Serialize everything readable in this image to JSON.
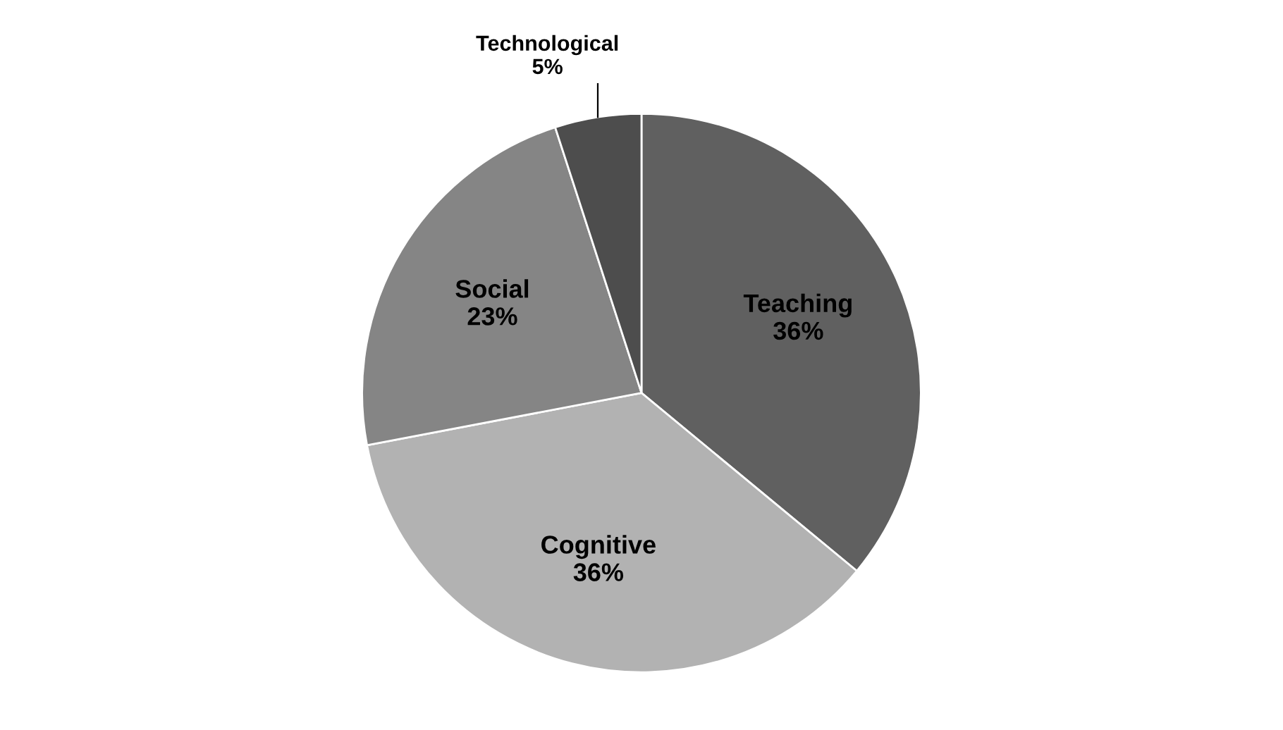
{
  "chart_data": {
    "type": "pie",
    "categories": [
      "Teaching",
      "Cognitive",
      "Social",
      "Technological"
    ],
    "values": [
      36,
      36,
      23,
      5
    ],
    "value_labels": [
      "36%",
      "36%",
      "23%",
      "5%"
    ],
    "colors": [
      "#606060",
      "#b2b2b2",
      "#858585",
      "#4d4d4d"
    ]
  }
}
